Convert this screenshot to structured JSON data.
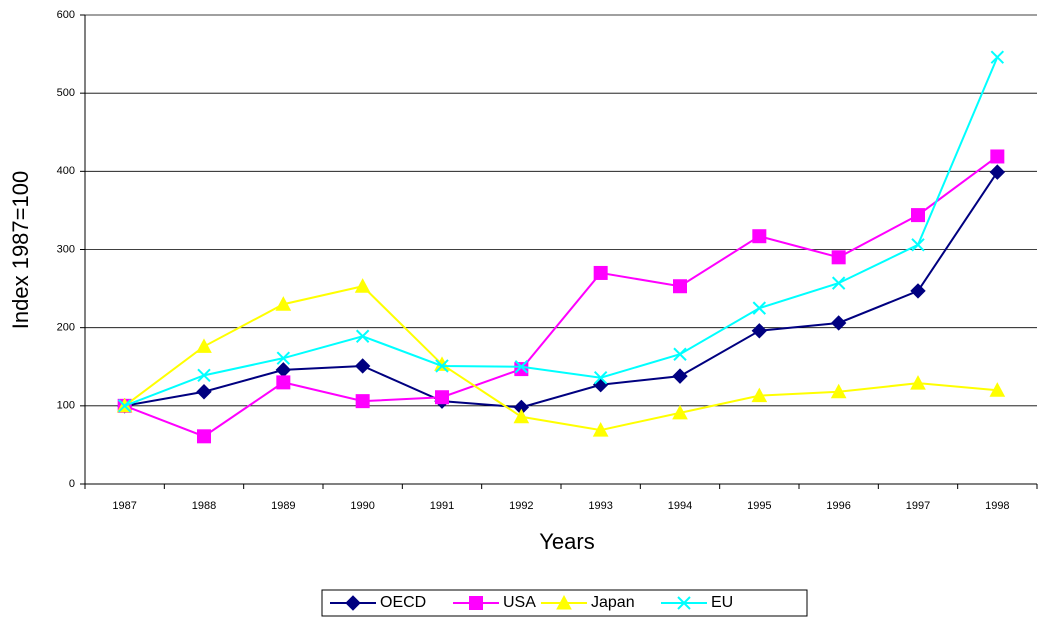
{
  "chart_data": {
    "type": "line",
    "xlabel": "Years",
    "ylabel": "Index 1987=100",
    "categories": [
      "1987",
      "1988",
      "1989",
      "1990",
      "1991",
      "1992",
      "1993",
      "1994",
      "1995",
      "1996",
      "1997",
      "1998"
    ],
    "series": [
      {
        "name": "OECD",
        "color": "#000080",
        "marker": "diamond",
        "values": [
          100,
          118,
          146,
          151,
          106,
          98,
          127,
          138,
          196,
          206,
          247,
          399
        ]
      },
      {
        "name": "USA",
        "color": "#ff00ff",
        "marker": "square",
        "values": [
          100,
          61,
          130,
          106,
          111,
          147,
          270,
          253,
          317,
          290,
          344,
          419
        ]
      },
      {
        "name": "Japan",
        "color": "#ffff00",
        "marker": "triangle",
        "values": [
          100,
          176,
          230,
          253,
          153,
          86,
          69,
          91,
          113,
          118,
          129,
          120
        ]
      },
      {
        "name": "EU",
        "color": "#00ffff",
        "marker": "x",
        "values": [
          100,
          139,
          161,
          189,
          151,
          150,
          136,
          166,
          225,
          257,
          306,
          546
        ]
      }
    ],
    "ylim": [
      0,
      600
    ],
    "yticks": [
      0,
      100,
      200,
      300,
      400,
      500,
      600
    ],
    "grid": true,
    "legend": "bottom"
  }
}
